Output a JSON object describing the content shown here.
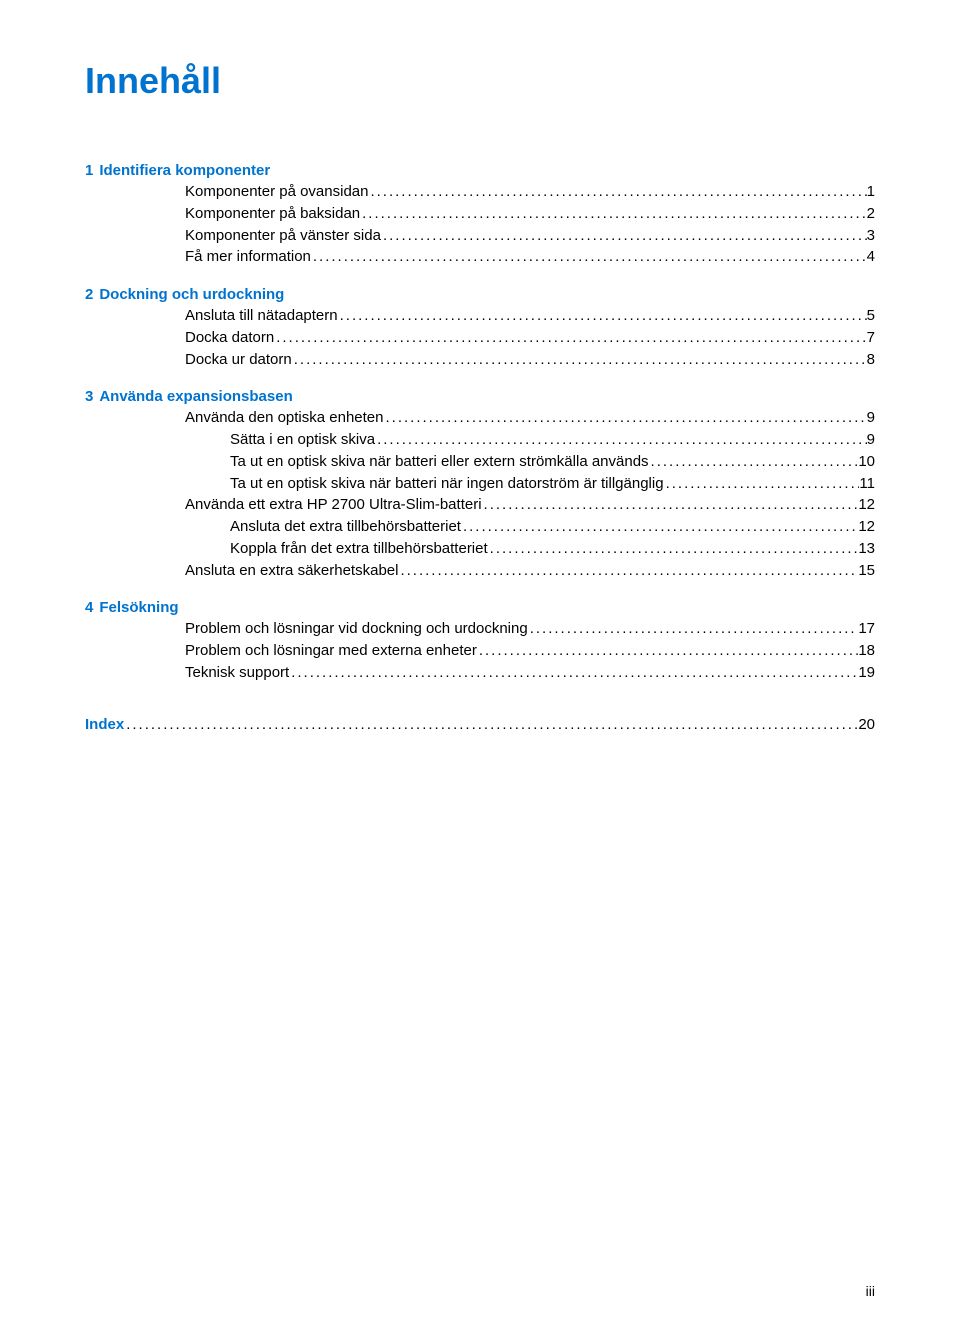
{
  "title": "Innehåll",
  "sections": [
    {
      "number": "1",
      "name": "Identifiera komponenter",
      "items": [
        {
          "label": "Komponenter på ovansidan",
          "page": "1",
          "indent": 0
        },
        {
          "label": "Komponenter på baksidan",
          "page": "2",
          "indent": 0
        },
        {
          "label": "Komponenter på vänster sida",
          "page": "3",
          "indent": 0
        },
        {
          "label": "Få mer information",
          "page": "4",
          "indent": 0
        }
      ]
    },
    {
      "number": "2",
      "name": "Dockning och urdockning",
      "items": [
        {
          "label": "Ansluta till nätadaptern",
          "page": "5",
          "indent": 0
        },
        {
          "label": "Docka datorn",
          "page": "7",
          "indent": 0
        },
        {
          "label": "Docka ur datorn",
          "page": "8",
          "indent": 0
        }
      ]
    },
    {
      "number": "3",
      "name": "Använda expansionsbasen",
      "items": [
        {
          "label": "Använda den optiska enheten",
          "page": "9",
          "indent": 0
        },
        {
          "label": "Sätta i en optisk skiva",
          "page": "9",
          "indent": 1
        },
        {
          "label": "Ta ut en optisk skiva när batteri eller extern strömkälla används",
          "page": "10",
          "indent": 1
        },
        {
          "label": "Ta ut en optisk skiva när batteri när ingen datorström är tillgänglig",
          "page": "11",
          "indent": 1
        },
        {
          "label": "Använda ett extra HP 2700 Ultra-Slim-batteri",
          "page": "12",
          "indent": 0
        },
        {
          "label": "Ansluta det extra tillbehörsbatteriet",
          "page": "12",
          "indent": 1
        },
        {
          "label": "Koppla från det extra tillbehörsbatteriet",
          "page": "13",
          "indent": 1
        },
        {
          "label": "Ansluta en extra säkerhetskabel",
          "page": "15",
          "indent": 0
        }
      ]
    },
    {
      "number": "4",
      "name": "Felsökning",
      "items": [
        {
          "label": "Problem och lösningar vid dockning och urdockning",
          "page": "17",
          "indent": 0
        },
        {
          "label": "Problem och lösningar med externa enheter",
          "page": "18",
          "indent": 0
        },
        {
          "label": "Teknisk support",
          "page": "19",
          "indent": 0
        }
      ]
    }
  ],
  "index": {
    "label": "Index",
    "page": "20"
  },
  "footer": "iii",
  "colors": {
    "heading": "#0073cf",
    "text": "#000000",
    "background": "#ffffff"
  },
  "typography": {
    "title_fontsize": 36,
    "body_fontsize": 15,
    "font_family": "Arial"
  },
  "dot_leader": ".................................................................................................................................................................................................."
}
